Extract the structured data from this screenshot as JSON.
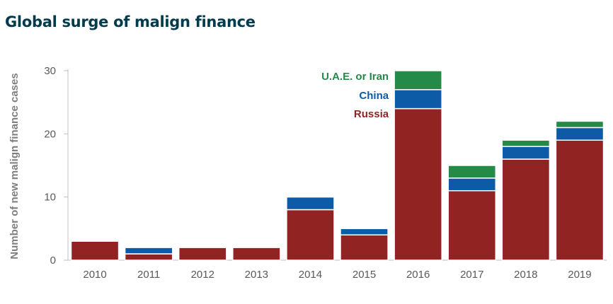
{
  "chart_data": {
    "type": "bar",
    "stacked": true,
    "title": "Global surge of malign finance",
    "xlabel": "",
    "ylabel": "Number of new malign finance cases",
    "ylim": [
      0,
      30
    ],
    "yticks": [
      0,
      10,
      20,
      30
    ],
    "categories": [
      "2010",
      "2011",
      "2012",
      "2013",
      "2014",
      "2015",
      "2016",
      "2017",
      "2018",
      "2019"
    ],
    "series": [
      {
        "name": "Russia",
        "color": "#922323",
        "values": [
          3,
          1,
          2,
          2,
          8,
          4,
          24,
          11,
          16,
          19
        ]
      },
      {
        "name": "China",
        "color": "#0d5aa7",
        "values": [
          0,
          1,
          0,
          0,
          2,
          1,
          3,
          2,
          2,
          2
        ]
      },
      {
        "name": "U.A.E. or Iran",
        "color": "#238a48",
        "values": [
          0,
          0,
          0,
          0,
          0,
          0,
          3,
          2,
          1,
          1
        ]
      }
    ],
    "legend": [
      {
        "label": "U.A.E. or Iran",
        "color": "#238a48"
      },
      {
        "label": "China",
        "color": "#0d5aa7"
      },
      {
        "label": "Russia",
        "color": "#922323"
      }
    ],
    "legend_position": "top-center, inside plot"
  }
}
